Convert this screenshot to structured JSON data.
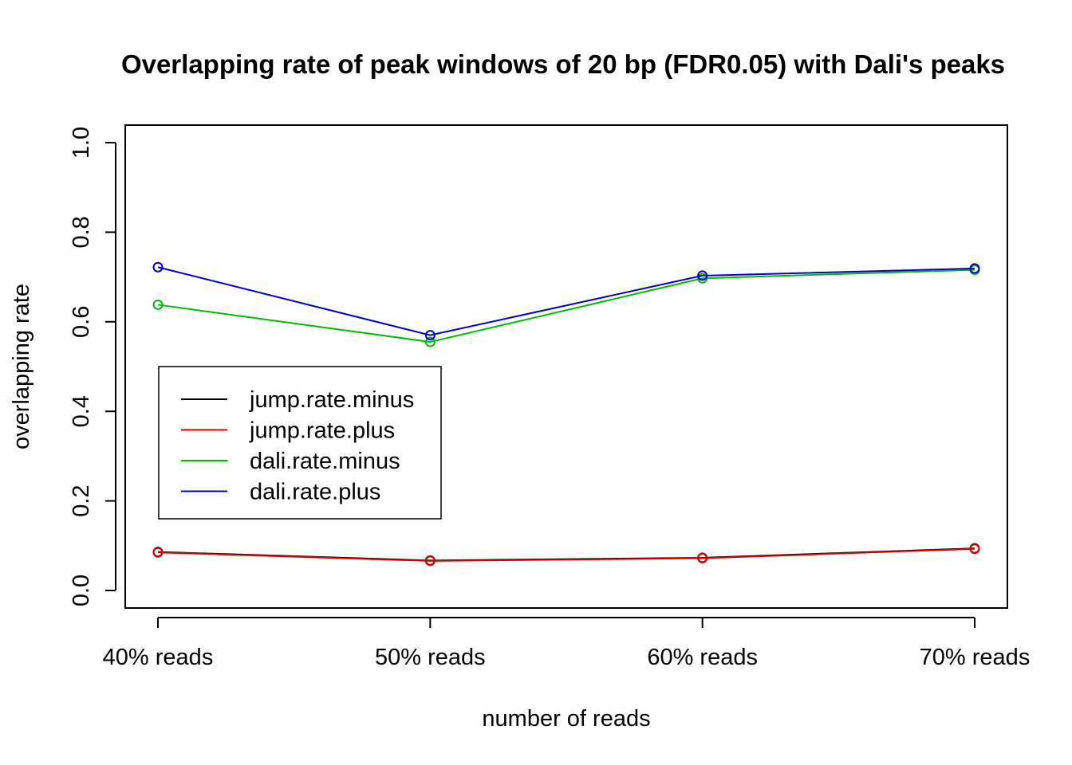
{
  "chart_data": {
    "type": "line",
    "title": "Overlapping rate of peak windows of 20 bp (FDR0.05) with Dali's peaks",
    "xlabel": "number of reads",
    "ylabel": "overlapping rate",
    "categories": [
      "40% reads",
      "50% reads",
      "60% reads",
      "70% reads"
    ],
    "ylim": [
      0,
      1
    ],
    "yticks": [
      "0.0",
      "0.2",
      "0.4",
      "0.6",
      "0.8",
      "1.0"
    ],
    "grid": false,
    "legend_position": "left",
    "series": [
      {
        "name": "jump.rate.minus",
        "color": "#000000",
        "values": [
          0.086,
          0.067,
          0.073,
          0.094
        ]
      },
      {
        "name": "jump.rate.plus",
        "color": "#dd0000",
        "values": [
          0.085,
          0.066,
          0.072,
          0.093
        ]
      },
      {
        "name": "dali.rate.minus",
        "color": "#00bb00",
        "values": [
          0.638,
          0.555,
          0.697,
          0.716
        ]
      },
      {
        "name": "dali.rate.plus",
        "color": "#0000cc",
        "values": [
          0.722,
          0.57,
          0.703,
          0.719
        ]
      }
    ]
  }
}
